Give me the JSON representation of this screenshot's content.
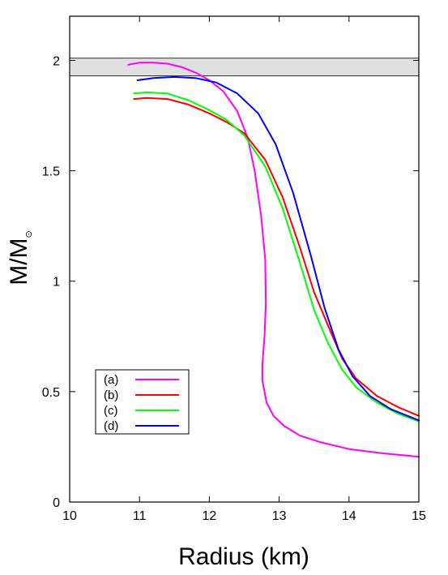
{
  "chart_data": {
    "type": "line",
    "xlabel": "Radius (km)",
    "ylabel": "M/M",
    "ylabel_sub": "⊙",
    "xlim": [
      10,
      15
    ],
    "ylim": [
      0,
      2.2
    ],
    "xticks": [
      10,
      11,
      12,
      13,
      14,
      15
    ],
    "xtick_labels": [
      "10",
      "11",
      "12",
      "13",
      "14",
      "15"
    ],
    "yticks": [
      0,
      0.5,
      1,
      1.5,
      2
    ],
    "ytick_labels": [
      "0",
      "0.5",
      "1",
      "1.5",
      "2"
    ],
    "grid": false,
    "legend_position": "bottom-left",
    "band": {
      "y_low": 1.93,
      "y_high": 2.01,
      "color": "#e0e0e0"
    },
    "series": [
      {
        "name": "(a)",
        "color": "#ff00ff",
        "points": [
          [
            10.84,
            1.98
          ],
          [
            11.0,
            1.99
          ],
          [
            11.2,
            1.99
          ],
          [
            11.4,
            1.985
          ],
          [
            11.6,
            1.97
          ],
          [
            11.8,
            1.945
          ],
          [
            12.0,
            1.91
          ],
          [
            12.2,
            1.86
          ],
          [
            12.4,
            1.77
          ],
          [
            12.55,
            1.65
          ],
          [
            12.65,
            1.5
          ],
          [
            12.74,
            1.3
          ],
          [
            12.8,
            1.1
          ],
          [
            12.81,
            0.9
          ],
          [
            12.79,
            0.75
          ],
          [
            12.76,
            0.62
          ],
          [
            12.76,
            0.55
          ],
          [
            12.82,
            0.45
          ],
          [
            12.92,
            0.39
          ],
          [
            13.07,
            0.345
          ],
          [
            13.3,
            0.3
          ],
          [
            13.6,
            0.27
          ],
          [
            14.0,
            0.24
          ],
          [
            14.5,
            0.22
          ],
          [
            15.0,
            0.205
          ]
        ]
      },
      {
        "name": "(b)",
        "color": "#ff0000",
        "points": [
          [
            10.92,
            1.825
          ],
          [
            11.1,
            1.83
          ],
          [
            11.4,
            1.825
          ],
          [
            11.7,
            1.8
          ],
          [
            12.0,
            1.76
          ],
          [
            12.25,
            1.72
          ],
          [
            12.5,
            1.67
          ],
          [
            12.8,
            1.55
          ],
          [
            13.05,
            1.38
          ],
          [
            13.3,
            1.15
          ],
          [
            13.5,
            0.95
          ],
          [
            13.7,
            0.8
          ],
          [
            13.9,
            0.65
          ],
          [
            14.1,
            0.56
          ],
          [
            14.4,
            0.48
          ],
          [
            14.7,
            0.43
          ],
          [
            15.0,
            0.39
          ]
        ]
      },
      {
        "name": "(c)",
        "color": "#00ff00",
        "points": [
          [
            10.92,
            1.85
          ],
          [
            11.1,
            1.855
          ],
          [
            11.4,
            1.85
          ],
          [
            11.7,
            1.82
          ],
          [
            12.0,
            1.775
          ],
          [
            12.25,
            1.73
          ],
          [
            12.5,
            1.66
          ],
          [
            12.8,
            1.52
          ],
          [
            13.05,
            1.33
          ],
          [
            13.3,
            1.08
          ],
          [
            13.5,
            0.87
          ],
          [
            13.7,
            0.72
          ],
          [
            13.9,
            0.6
          ],
          [
            14.1,
            0.52
          ],
          [
            14.4,
            0.45
          ],
          [
            14.7,
            0.4
          ],
          [
            15.0,
            0.365
          ]
        ]
      },
      {
        "name": "(d)",
        "color": "#0000ff",
        "points": [
          [
            10.97,
            1.91
          ],
          [
            11.2,
            1.92
          ],
          [
            11.5,
            1.925
          ],
          [
            11.8,
            1.92
          ],
          [
            12.1,
            1.9
          ],
          [
            12.4,
            1.85
          ],
          [
            12.7,
            1.76
          ],
          [
            12.95,
            1.62
          ],
          [
            13.2,
            1.4
          ],
          [
            13.45,
            1.12
          ],
          [
            13.65,
            0.88
          ],
          [
            13.85,
            0.69
          ],
          [
            14.05,
            0.57
          ],
          [
            14.3,
            0.48
          ],
          [
            14.6,
            0.42
          ],
          [
            15.0,
            0.37
          ]
        ]
      }
    ]
  }
}
